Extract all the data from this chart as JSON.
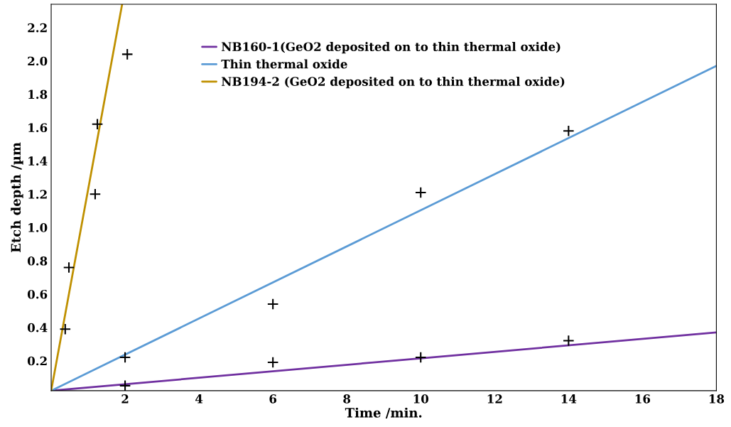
{
  "chart_data": {
    "type": "line",
    "xlabel": "Time /min.",
    "ylabel": "Etch depth /µm",
    "xlim": [
      0,
      18
    ],
    "xticks": [
      2,
      4,
      6,
      8,
      10,
      12,
      14,
      16,
      18
    ],
    "ylim": [
      0.02,
      2.34
    ],
    "yticks": [
      0.2,
      0.4,
      0.6,
      0.8,
      {
        "value": 1.0,
        "label": "1.0"
      },
      1.2,
      1.4,
      1.6,
      1.8,
      {
        "value": 2.0,
        "label": "2.0"
      },
      2.2
    ],
    "grid": false,
    "legend": "top",
    "marker": "none",
    "line_style": "solid",
    "series": [
      {
        "name": "NB160-1(GeO2 deposited on to thin thermal oxide)",
        "color": "#7030a0",
        "x": [
          0,
          18
        ],
        "values": [
          0.02,
          0.37
        ]
      },
      {
        "name": "Thin thermal oxide",
        "color": "#5b9bd5",
        "x": [
          0,
          18
        ],
        "values": [
          0.02,
          1.97
        ]
      },
      {
        "name": "NB194-2 (GeO2 deposited on to thin thermal oxide)",
        "color": "#bf9000",
        "x": [
          0,
          1.92
        ],
        "values": [
          0.02,
          2.34
        ]
      },
      {
        "type": "scatter",
        "marker": "cross",
        "color": "#000000",
        "x": [
          2,
          6,
          10,
          14
        ],
        "values": [
          0.05,
          0.19,
          0.22,
          0.32
        ]
      },
      {
        "type": "scatter",
        "marker": "cross",
        "color": "#000000",
        "x": [
          2,
          6,
          10,
          14
        ],
        "values": [
          0.22,
          0.54,
          1.21,
          1.58
        ]
      },
      {
        "type": "scatter",
        "marker": "cross",
        "color": "#000000",
        "x": [
          0.38,
          0.48,
          1.19,
          1.25,
          2.06
        ],
        "values": [
          0.39,
          0.76,
          1.2,
          1.62,
          2.04
        ]
      }
    ]
  }
}
